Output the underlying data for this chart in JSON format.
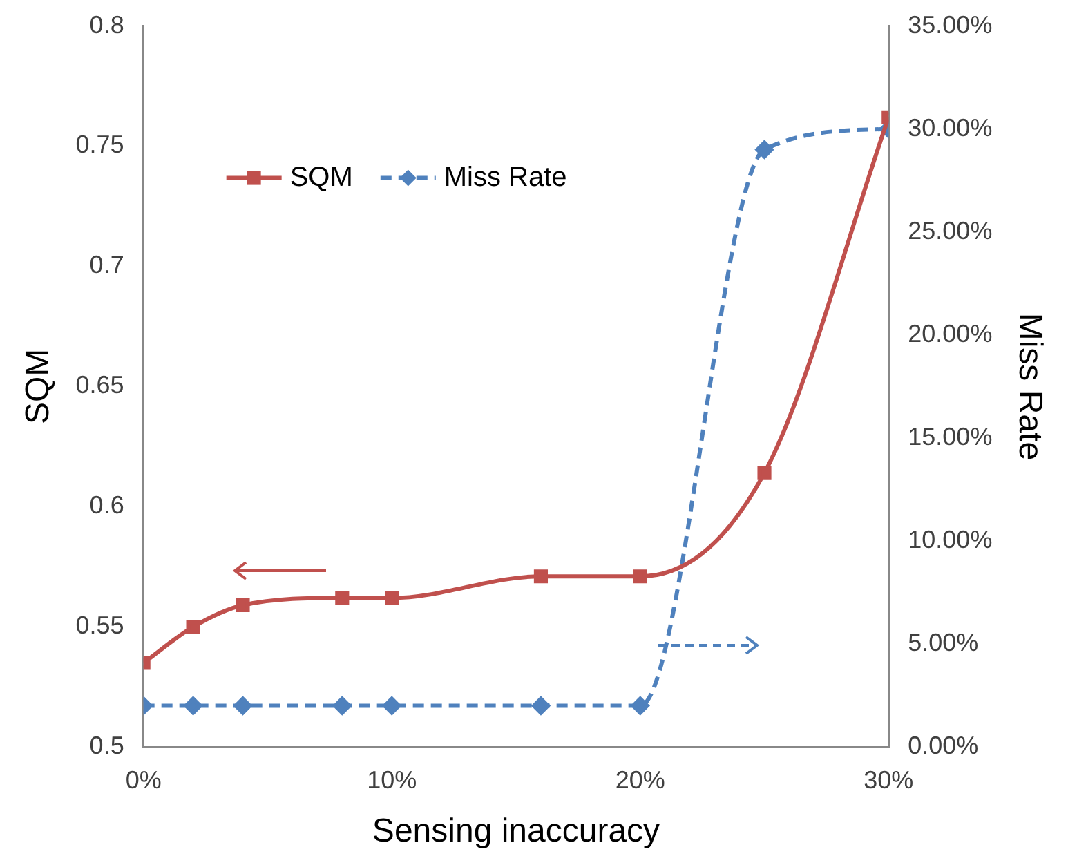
{
  "chart_data": {
    "type": "line",
    "xlabel": "Sensing inaccuracy",
    "ylabel": "SQM",
    "y2label": "Miss Rate",
    "x": [
      0,
      2,
      4,
      8,
      10,
      16,
      20,
      25,
      30
    ],
    "xlim": [
      0,
      30
    ],
    "xticks": [
      {
        "value": 0,
        "label": "0%"
      },
      {
        "value": 10,
        "label": "10%"
      },
      {
        "value": 20,
        "label": "20%"
      },
      {
        "value": 30,
        "label": "30%"
      }
    ],
    "ylim": [
      0.5,
      0.8
    ],
    "yticks": [
      0.5,
      0.55,
      0.6,
      0.65,
      0.7,
      0.75,
      0.8
    ],
    "y2lim": [
      0,
      35
    ],
    "y2ticks": [
      {
        "value": 0,
        "label": "0.00%"
      },
      {
        "value": 5,
        "label": "5.00%"
      },
      {
        "value": 10,
        "label": "10.00%"
      },
      {
        "value": 15,
        "label": "15.00%"
      },
      {
        "value": 20,
        "label": "20.00%"
      },
      {
        "value": 25,
        "label": "25.00%"
      },
      {
        "value": 30,
        "label": "30.00%"
      },
      {
        "value": 35,
        "label": "35.00%"
      }
    ],
    "series": [
      {
        "name": "SQM",
        "color": "#c0504d",
        "marker": "square",
        "line_style": "solid",
        "values": [
          0.535,
          0.55,
          0.559,
          0.562,
          0.562,
          0.571,
          0.571,
          0.614,
          0.762
        ]
      },
      {
        "name": "Miss Rate",
        "color": "#4f81bd",
        "marker": "diamond",
        "line_style": "dashed",
        "axis": "y2",
        "values": [
          2,
          2,
          2,
          2,
          2,
          2,
          2,
          29,
          30
        ]
      }
    ],
    "grid": false,
    "legend": "top left"
  }
}
